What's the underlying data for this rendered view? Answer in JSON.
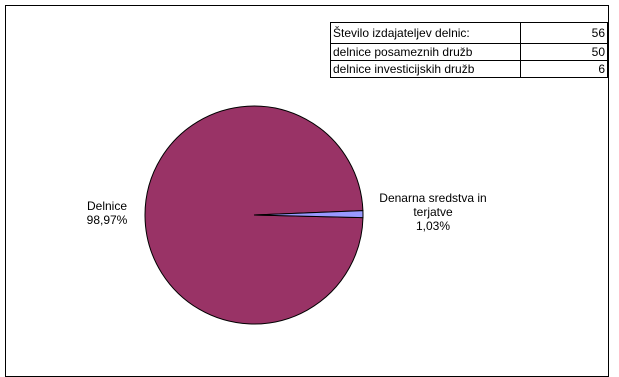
{
  "chart_data": {
    "type": "pie",
    "slices": [
      {
        "label": "Delnice",
        "value": 98.97,
        "pct_label": "98,97%",
        "color": "#993366"
      },
      {
        "label": "Denarna sredstva in terjatve",
        "value": 1.03,
        "pct_label": "1,03%",
        "color": "#9999ff"
      }
    ],
    "legend": "none"
  },
  "info_table": {
    "rows": [
      {
        "label": "Število izdajateljev delnic:",
        "value": "56"
      },
      {
        "label": "delnice posameznih družb",
        "value": "50"
      },
      {
        "label": "delnice investicijskih družb",
        "value": "6"
      }
    ]
  }
}
